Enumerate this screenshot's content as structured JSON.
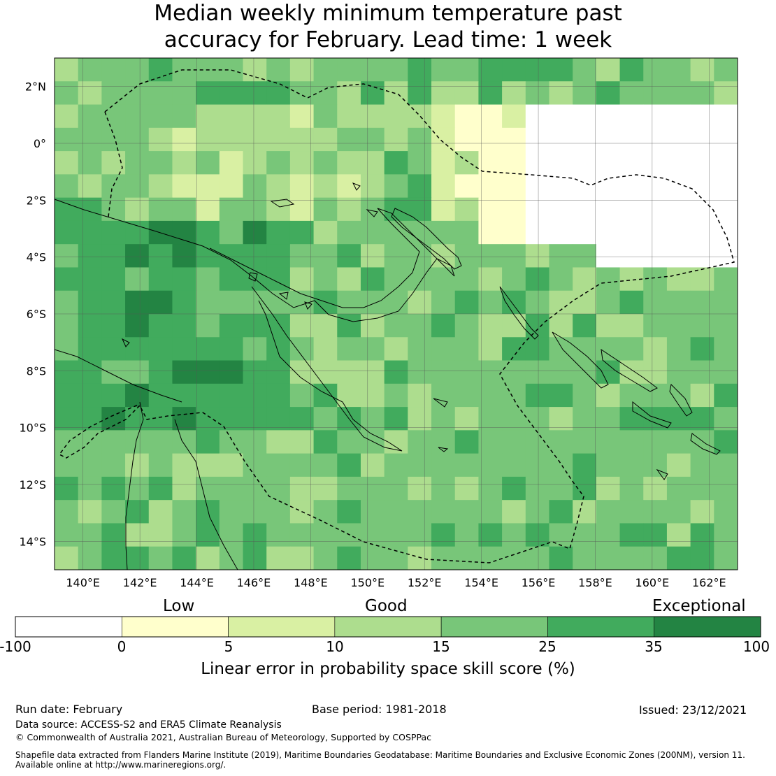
{
  "title_line1": "Median weekly minimum temperature past",
  "title_line2": "accuracy for February. Lead time: 1 week",
  "map": {
    "lon_labels": [
      "140°E",
      "142°E",
      "144°E",
      "146°E",
      "148°E",
      "150°E",
      "152°E",
      "154°E",
      "156°E",
      "158°E",
      "160°E",
      "162°E"
    ],
    "lat_labels": [
      "2°N",
      "0°",
      "2°S",
      "4°S",
      "6°S",
      "8°S",
      "10°S",
      "12°S",
      "14°S"
    ],
    "lon_range": [
      139,
      163
    ],
    "lat_range": [
      -15,
      3
    ]
  },
  "colorbar": {
    "categories": [
      "Low",
      "Good",
      "Exceptional"
    ],
    "ticks": [
      "-100",
      "0",
      "5",
      "10",
      "15",
      "25",
      "35",
      "100"
    ],
    "colors": [
      "#ffffff",
      "#ffffcc",
      "#d9f0a3",
      "#addd8e",
      "#78c679",
      "#41ab5d",
      "#238443"
    ],
    "label": "Linear error in probability space skill score (%)"
  },
  "footer": {
    "run_date": "Run date: February",
    "base_period": "Base period: 1981-2018",
    "issued": "Issued: 23/12/2021",
    "data_source": "Data source: ACCESS-S2 and ERA5 Climate Reanalysis",
    "copyright": "© Commonwealth of Australia 2021, Australian Bureau of Meteorology, Supported by COSPPac",
    "shapefile_line1": "Shapefile data extracted from Flanders Marine Institute (2019), Maritime Boundaries Geodatabase: Maritime Boundaries and Exclusive Economic Zones (200NM), version 11.",
    "shapefile_line2": "Available online at http://www.marineregions.org/."
  }
}
